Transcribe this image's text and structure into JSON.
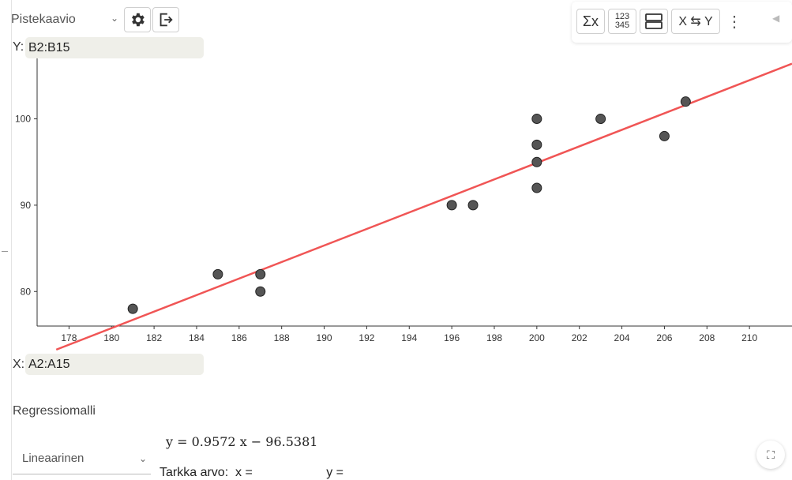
{
  "toolbar": {
    "plot_type": "Pistekaavio",
    "sum_label": "Σx",
    "stats_top": "123",
    "stats_bottom": "345",
    "swap_label": "X ⇆ Y",
    "more_label": "⋮",
    "collapse_label": "◀"
  },
  "fields": {
    "y_label": "Y:",
    "y_value": "B2:B15",
    "x_label": "X:",
    "x_value": "A2:A15"
  },
  "chart_data": {
    "type": "scatter",
    "x": [
      181,
      185,
      187,
      187,
      196,
      197,
      200,
      200,
      200,
      200,
      203,
      206,
      207
    ],
    "y": [
      78,
      82,
      82,
      80,
      90,
      90,
      100,
      97,
      95,
      92,
      100,
      98,
      102
    ],
    "regression": {
      "slope": 0.9572,
      "intercept": -96.5381,
      "color": "#f05555"
    },
    "xlim": [
      176.5,
      212
    ],
    "ylim": [
      76,
      107
    ],
    "xticks": [
      "178",
      "180",
      "182",
      "184",
      "186",
      "188",
      "190",
      "192",
      "194",
      "196",
      "198",
      "200",
      "202",
      "204",
      "206",
      "208",
      "210"
    ],
    "yticks": [
      "80",
      "90",
      "100"
    ],
    "point_color": "#555555",
    "grid": false
  },
  "regression_panel": {
    "title": "Regressiomalli",
    "model": "Lineaarinen",
    "equation": "y = 0.9572 x − 96.5381",
    "exact_label": "Tarkka arvo:",
    "x_eq": "x =",
    "y_eq": "y ="
  },
  "icons": {
    "fullscreen": "⛶"
  }
}
